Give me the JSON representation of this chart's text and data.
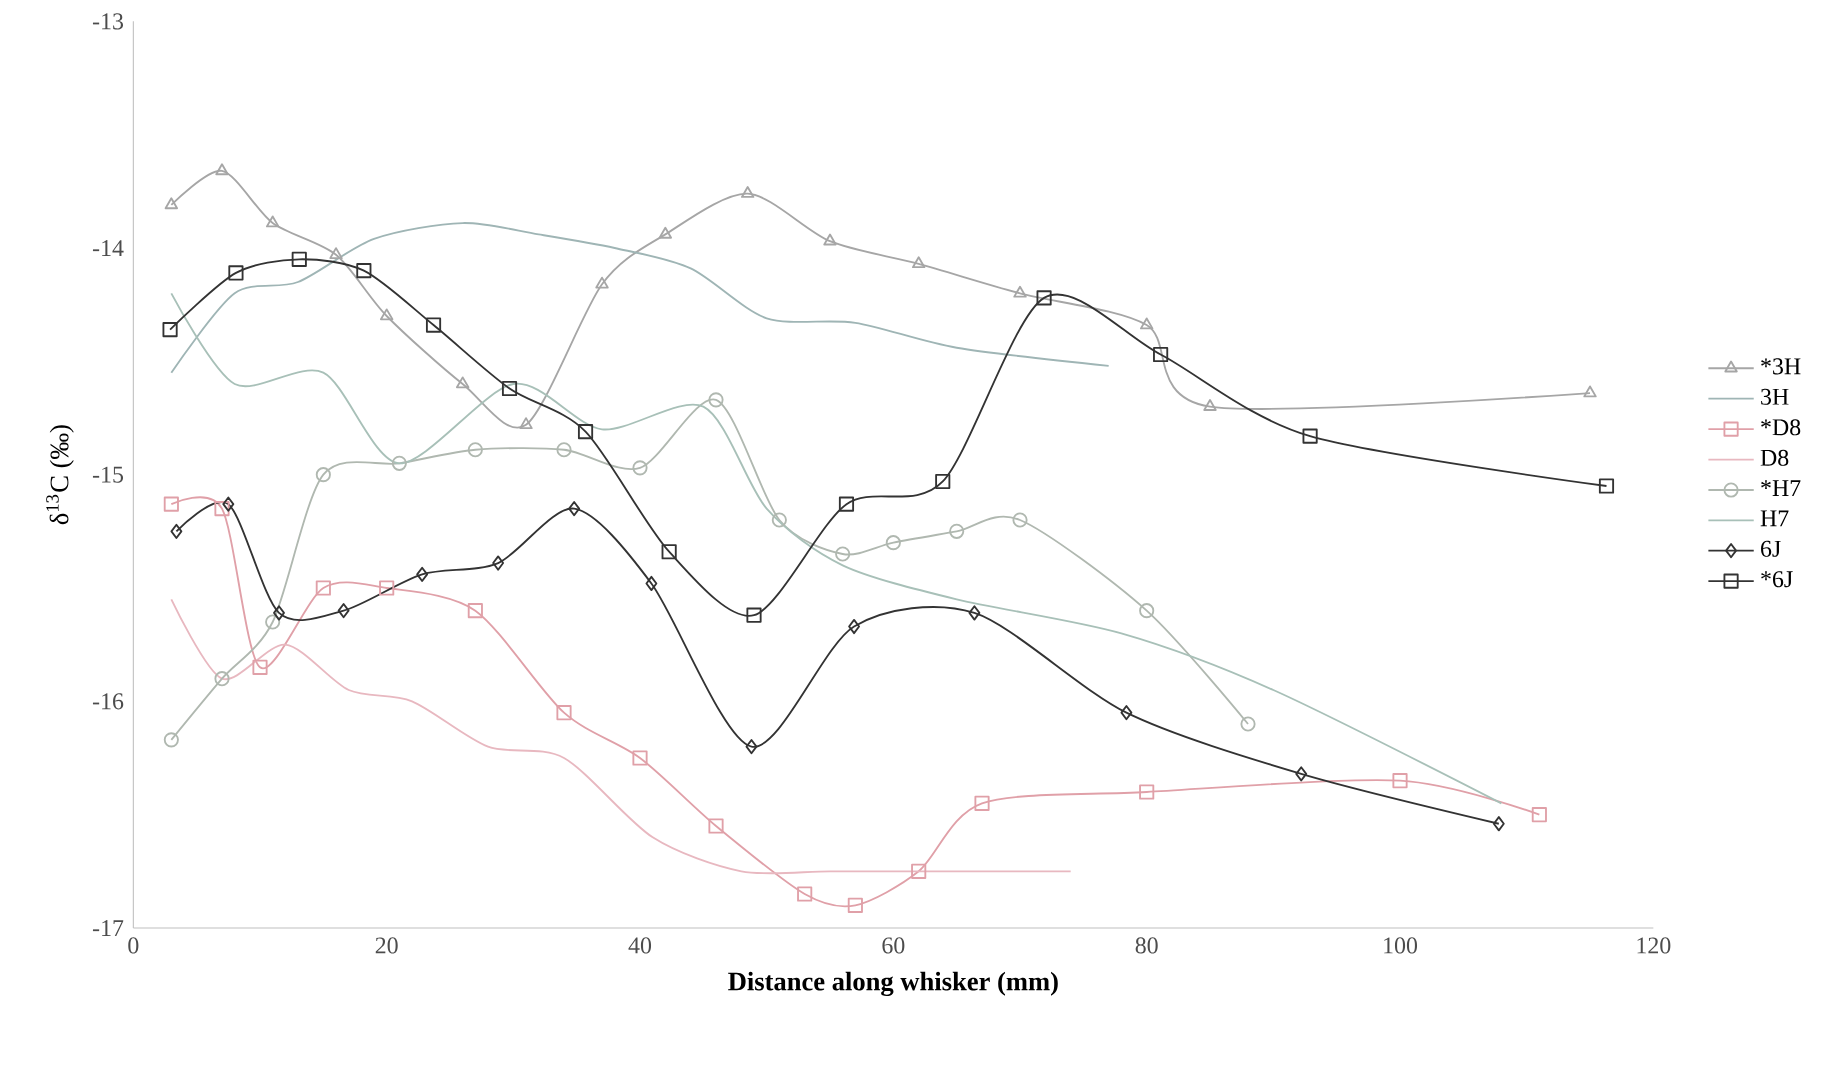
{
  "chart_data": {
    "type": "line",
    "xlabel": "**Distance along whisker (mm)**",
    "ylabel": "δ$^{13}$C (‰)",
    "xlim": [
      0,
      120
    ],
    "ylim": [
      -17,
      -13
    ],
    "xticks": [
      0,
      20,
      40,
      60,
      80,
      100,
      120
    ],
    "yticks": [
      -17,
      -16,
      -15,
      -14,
      -13
    ],
    "grid": false,
    "legend": "right",
    "line_style": "solid",
    "series": [
      {
        "name": "*3H",
        "color": "#a6a6a6",
        "marker": "triangle",
        "x": [
          3,
          7,
          11,
          16,
          20,
          26,
          31,
          37,
          42,
          48.5,
          55,
          62,
          70,
          80,
          85,
          115
        ],
        "values": [
          -13.81,
          -13.66,
          -13.89,
          -14.03,
          -14.3,
          -14.6,
          -14.78,
          -14.16,
          -13.94,
          -13.76,
          -13.97,
          -14.07,
          -14.2,
          -14.34,
          -14.7,
          -14.64
        ]
      },
      {
        "name": "3H",
        "color": "#9fb5b5",
        "marker": "none",
        "x": [
          3,
          8,
          13,
          19,
          26,
          32,
          38,
          44,
          50,
          57,
          65,
          77
        ],
        "values": [
          -14.55,
          -14.2,
          -14.15,
          -13.96,
          -13.89,
          -13.94,
          -14.0,
          -14.09,
          -14.31,
          -14.33,
          -14.44,
          -14.52
        ]
      },
      {
        "name": "*D8",
        "color": "#e0a0a8",
        "marker": "square",
        "x": [
          3,
          7,
          10,
          15,
          20,
          27,
          34,
          40,
          46,
          53,
          57,
          62,
          67,
          80,
          100,
          111
        ],
        "values": [
          -15.13,
          -15.15,
          -15.85,
          -15.5,
          -15.5,
          -15.6,
          -16.05,
          -16.25,
          -16.55,
          -16.85,
          -16.9,
          -16.75,
          -16.45,
          -16.4,
          -16.35,
          -16.5
        ]
      },
      {
        "name": "D8",
        "color": "#e8b8c0",
        "marker": "none",
        "x": [
          3,
          7,
          12,
          17,
          22,
          28,
          34,
          41,
          48,
          55,
          62,
          68,
          74
        ],
        "values": [
          -15.55,
          -15.9,
          -15.75,
          -15.95,
          -16.0,
          -16.2,
          -16.25,
          -16.6,
          -16.75,
          -16.75,
          -16.75,
          -16.75,
          -16.75
        ]
      },
      {
        "name": "*H7",
        "color": "#b0b8b0",
        "marker": "circle",
        "x": [
          3,
          7,
          11,
          15,
          21,
          27,
          34,
          40,
          46,
          51,
          56,
          60,
          65,
          70,
          80,
          88
        ],
        "values": [
          -16.17,
          -15.9,
          -15.65,
          -15.0,
          -14.95,
          -14.89,
          -14.89,
          -14.97,
          -14.67,
          -15.2,
          -15.35,
          -15.3,
          -15.25,
          -15.2,
          -15.6,
          -16.1
        ]
      },
      {
        "name": "H7",
        "color": "#a8c0b8",
        "marker": "none",
        "x": [
          3,
          8,
          15,
          21,
          30,
          37,
          45,
          50,
          56,
          65,
          78,
          90,
          108
        ],
        "values": [
          -14.2,
          -14.6,
          -14.55,
          -14.95,
          -14.6,
          -14.8,
          -14.7,
          -15.15,
          -15.4,
          -15.55,
          -15.7,
          -15.95,
          -16.45
        ]
      },
      {
        "name": "6J",
        "color": "#333333",
        "marker": "diamond",
        "x": [
          3.4,
          7.5,
          11.5,
          16.6,
          22.8,
          28.8,
          34.8,
          40.9,
          48.8,
          56.9,
          66.4,
          78.4,
          92.2,
          107.8
        ],
        "values": [
          -15.25,
          -15.13,
          -15.61,
          -15.6,
          -15.44,
          -15.39,
          -15.15,
          -15.48,
          -16.2,
          -15.67,
          -15.61,
          -16.05,
          -16.32,
          -16.54
        ]
      },
      {
        "name": "*6J",
        "color": "#333333",
        "marker": "square",
        "x": [
          2.9,
          8.1,
          13.1,
          18.2,
          23.7,
          29.7,
          35.7,
          42.3,
          49.0,
          56.3,
          63.9,
          71.9,
          81.1,
          92.9,
          116.3
        ],
        "values": [
          -14.36,
          -14.11,
          -14.05,
          -14.1,
          -14.34,
          -14.62,
          -14.81,
          -15.34,
          -15.62,
          -15.13,
          -15.03,
          -14.22,
          -14.47,
          -14.83,
          -15.05
        ]
      }
    ]
  }
}
